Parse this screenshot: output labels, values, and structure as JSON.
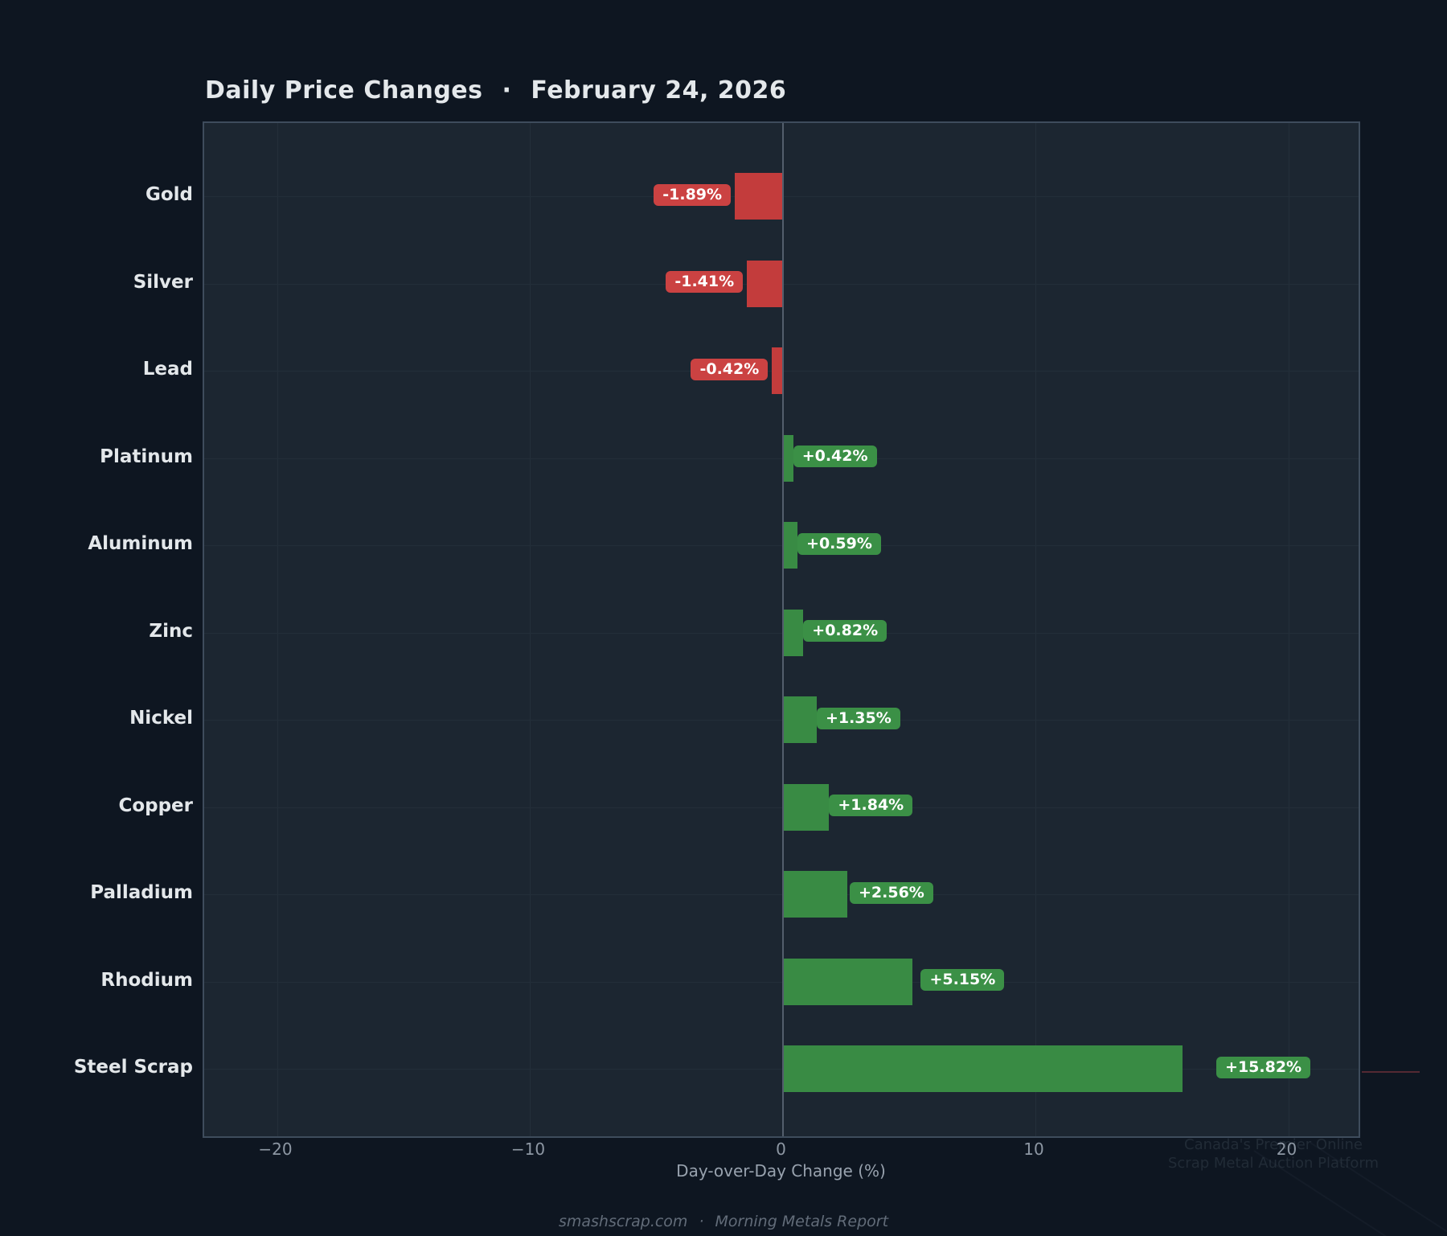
{
  "title": {
    "main": "Daily Price Changes",
    "separator": "·",
    "date": "February 24, 2026"
  },
  "chart_data": {
    "type": "bar",
    "orientation": "horizontal",
    "title": "Daily Price Changes · February 24, 2026",
    "categories": [
      "Gold",
      "Silver",
      "Lead",
      "Platinum",
      "Aluminum",
      "Zinc",
      "Nickel",
      "Copper",
      "Palladium",
      "Rhodium",
      "Steel Scrap"
    ],
    "values": [
      -1.89,
      -1.41,
      -0.42,
      0.42,
      0.59,
      0.82,
      1.35,
      1.84,
      2.56,
      5.15,
      15.82
    ],
    "value_labels": [
      "-1.89%",
      "-1.41%",
      "-0.42%",
      "+0.42%",
      "+0.59%",
      "+0.82%",
      "+1.35%",
      "+1.84%",
      "+2.56%",
      "+5.15%",
      "+15.82%"
    ],
    "xlabel": "Day-over-Day Change (%)",
    "x_ticks": [
      -20,
      -10,
      0,
      10,
      20
    ],
    "x_tick_labels": [
      "−20",
      "−10",
      "0",
      "10",
      "20"
    ],
    "xlim": [
      -22.9,
      22.9
    ],
    "grid": true,
    "legend": false,
    "colors": {
      "negative_bar": "#c33c3c",
      "negative_badge": "#cb4242",
      "positive_bar": "#398b44",
      "positive_badge": "#3b9046",
      "plot_background": "#1c2631",
      "page_background": "#0e1621"
    }
  },
  "footer": {
    "site": "smashscrap.com",
    "separator": "·",
    "report": "Morning Metals Report"
  },
  "watermark": {
    "line1": "Canada's Premier Online",
    "line2": "Scrap Metal Auction Platform"
  }
}
